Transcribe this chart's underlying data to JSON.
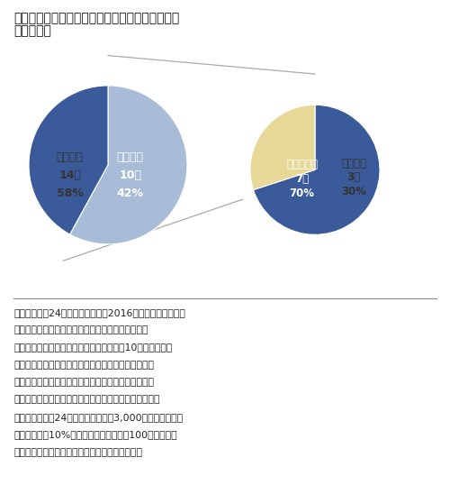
{
  "title_line1": "図８　投資優先度意思決定における市場成長性の",
  "title_line2": "　　　影響",
  "left_pie": {
    "values": [
      58,
      42
    ],
    "labels": [
      "低下なし",
      "低下あり"
    ],
    "sublabels": [
      "14社",
      "10社"
    ],
    "pcts": [
      "58%",
      "42%"
    ],
    "colors": [
      "#a8bcd8",
      "#3a5a9a"
    ],
    "startangle": 90,
    "counterclock": false,
    "text_colors": [
      "#333333",
      "#ffffff"
    ]
  },
  "right_pie": {
    "values": [
      70,
      30
    ],
    "labels": [
      "回復見込み",
      "変更なし"
    ],
    "sublabels": [
      "7社",
      "3社"
    ],
    "pcts": [
      "70%",
      "30%"
    ],
    "colors": [
      "#3a5a9a",
      "#e8d898"
    ],
    "startangle": 90,
    "counterclock": false,
    "text_colors": [
      "#ffffff",
      "#333333"
    ]
  },
  "note_text": "注：有効回答24社　低下ありは、2016年以降に低下したあ\nるいは今後低下する見込みの企業数の合算を示す\n（左）。回復見込みは、日本市場が先進10か国の市場成\n長並みのプラス成長となることを前提とした際に諸\n外国並みあるいは並み以上に優先度を上げる見込み\nの企業数の合算を示す（右図）。抽出対象のグローバ\nル企業大手（24社）は、連結売上3,000億円以上かつ海\n外売上比率10%以上の内資企業および100億ドル以上\nのグローバルファーマのグループ企業とした。",
  "bg_color": "#ffffff",
  "line_color": "#aaaaaa",
  "divider_color": "#888888"
}
